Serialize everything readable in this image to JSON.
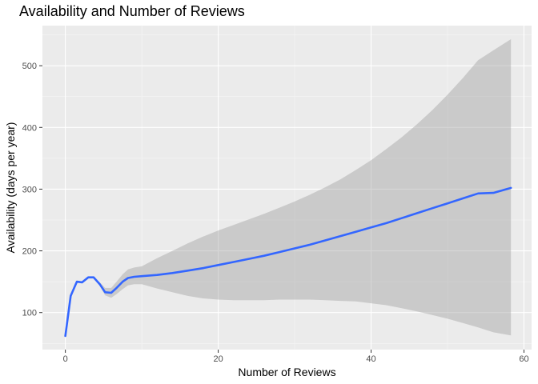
{
  "chart_data": {
    "type": "line",
    "title": "Availability and Number of Reviews",
    "xlabel": "Number of Reviews",
    "ylabel": "Availability (days per year)",
    "xlim": [
      -3,
      61
    ],
    "ylim": [
      40,
      565
    ],
    "x_ticks": [
      0,
      20,
      40,
      60
    ],
    "x_minor_ticks": [
      10,
      30,
      50
    ],
    "y_ticks": [
      100,
      200,
      300,
      400,
      500
    ],
    "y_minor_ticks": [
      50,
      150,
      250,
      350,
      450,
      550
    ],
    "grid": true,
    "legend": "none",
    "series": [
      {
        "type": "smooth",
        "color": "#3366FF",
        "ribbon_color": "#999999",
        "x": [
          0,
          0.7,
          1.5,
          2.2,
          3.0,
          3.7,
          4.5,
          5.2,
          6.0,
          6.7,
          7.5,
          8.2,
          9.0,
          10,
          12,
          14,
          16,
          18,
          20,
          22,
          24,
          26,
          28,
          30,
          32,
          34,
          36,
          38,
          40,
          42,
          44,
          46,
          48,
          50,
          52,
          54,
          56,
          58.3
        ],
        "y": [
          62,
          127,
          150,
          149,
          157,
          157,
          146,
          133,
          132,
          140,
          150,
          156,
          158,
          159,
          161,
          164,
          168,
          172,
          177,
          182,
          187,
          192,
          198,
          204,
          210,
          217,
          224,
          231,
          238,
          245,
          253,
          261,
          269,
          277,
          285,
          293,
          294,
          302
        ],
        "upper": [
          62,
          127,
          150,
          149,
          157,
          157,
          149,
          140,
          140,
          150,
          162,
          170,
          173,
          175,
          188,
          200,
          212,
          223,
          233,
          242,
          251,
          260,
          270,
          280,
          291,
          303,
          316,
          331,
          347,
          365,
          384,
          405,
          428,
          453,
          480,
          509,
          525,
          543
        ],
        "lower": [
          62,
          127,
          150,
          149,
          157,
          157,
          143,
          128,
          124,
          130,
          138,
          144,
          146,
          146,
          139,
          133,
          127,
          123,
          121,
          120,
          120,
          120,
          121,
          121,
          121,
          120,
          119,
          118,
          115,
          112,
          107,
          102,
          96,
          90,
          83,
          76,
          68,
          63
        ]
      }
    ]
  }
}
